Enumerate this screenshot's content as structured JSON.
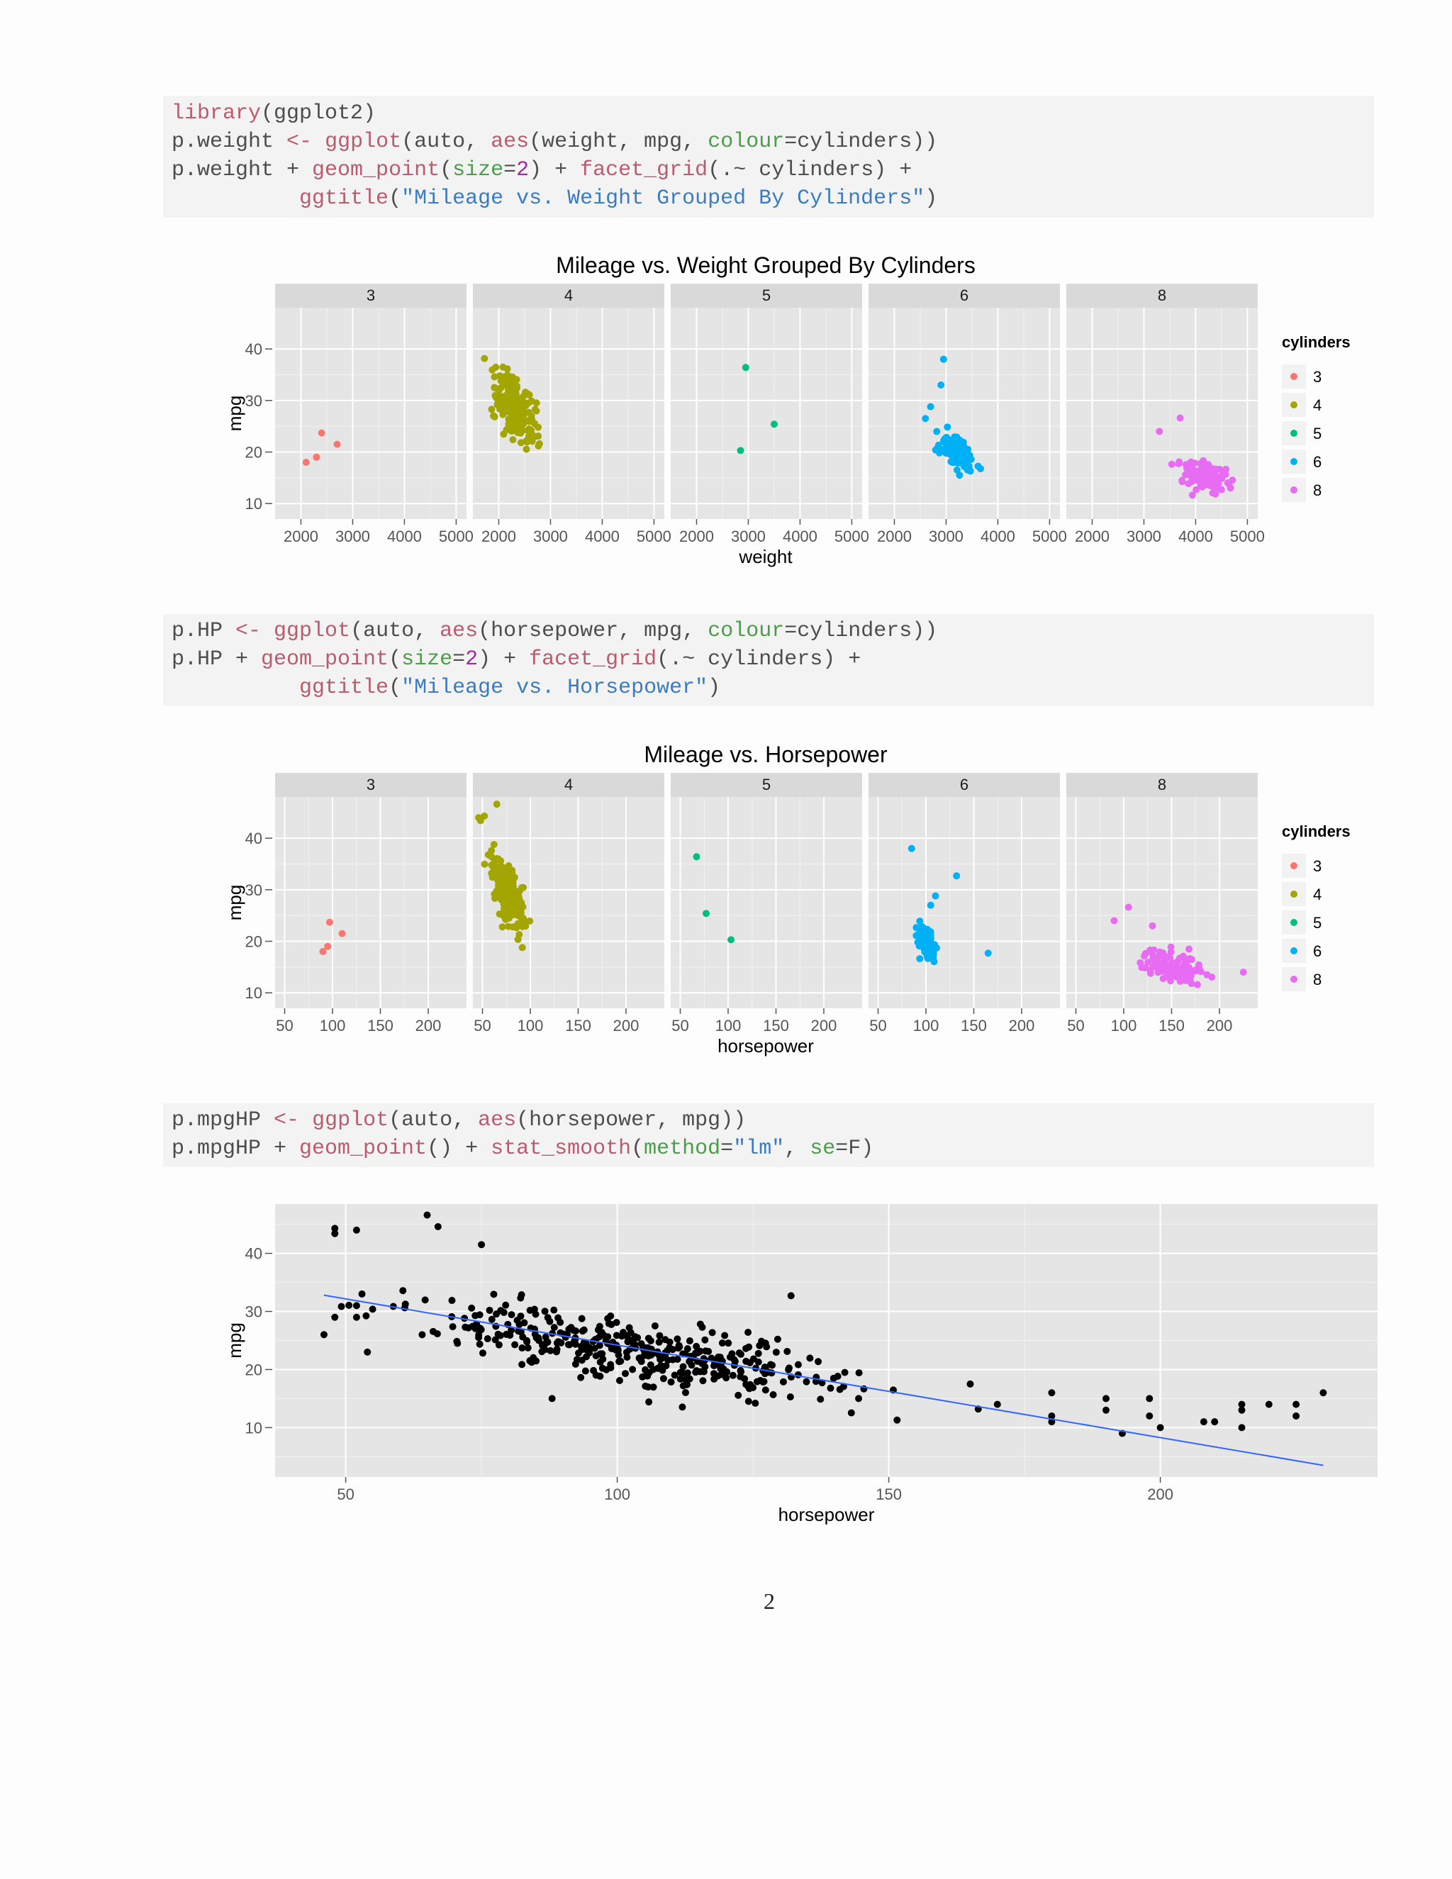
{
  "code_blocks": [
    [
      [
        [
          "kw",
          "library"
        ],
        [
          "t",
          "(ggplot2)"
        ]
      ],
      [
        [
          "t",
          "p.weight "
        ],
        [
          "kw",
          "<-"
        ],
        [
          "t",
          " "
        ],
        [
          "kw",
          "ggplot"
        ],
        [
          "t",
          "(auto, "
        ],
        [
          "kw",
          "aes"
        ],
        [
          "t",
          "(weight, mpg, "
        ],
        [
          "ar",
          "colour"
        ],
        [
          "t",
          "=cylinders))"
        ]
      ],
      [
        [
          "t",
          "p.weight + "
        ],
        [
          "kw",
          "geom_point"
        ],
        [
          "t",
          "("
        ],
        [
          "ar",
          "size"
        ],
        [
          "t",
          "="
        ],
        [
          "nm",
          "2"
        ],
        [
          "t",
          ") + "
        ],
        [
          "kw",
          "facet_grid"
        ],
        [
          "t",
          "(.~ cylinders) +"
        ]
      ],
      [
        [
          "t",
          "          "
        ],
        [
          "kw",
          "ggtitle"
        ],
        [
          "t",
          "("
        ],
        [
          "st",
          "\"Mileage vs. Weight Grouped By Cylinders\""
        ],
        [
          "t",
          ")"
        ]
      ]
    ],
    [
      [
        [
          "t",
          "p.HP "
        ],
        [
          "kw",
          "<-"
        ],
        [
          "t",
          " "
        ],
        [
          "kw",
          "ggplot"
        ],
        [
          "t",
          "(auto, "
        ],
        [
          "kw",
          "aes"
        ],
        [
          "t",
          "(horsepower, mpg, "
        ],
        [
          "ar",
          "colour"
        ],
        [
          "t",
          "=cylinders))"
        ]
      ],
      [
        [
          "t",
          "p.HP + "
        ],
        [
          "kw",
          "geom_point"
        ],
        [
          "t",
          "("
        ],
        [
          "ar",
          "size"
        ],
        [
          "t",
          "="
        ],
        [
          "nm",
          "2"
        ],
        [
          "t",
          ") + "
        ],
        [
          "kw",
          "facet_grid"
        ],
        [
          "t",
          "(.~ cylinders) +"
        ]
      ],
      [
        [
          "t",
          "          "
        ],
        [
          "kw",
          "ggtitle"
        ],
        [
          "t",
          "("
        ],
        [
          "st",
          "\"Mileage vs. Horsepower\""
        ],
        [
          "t",
          ")"
        ]
      ]
    ],
    [
      [
        [
          "t",
          "p.mpgHP "
        ],
        [
          "kw",
          "<-"
        ],
        [
          "t",
          " "
        ],
        [
          "kw",
          "ggplot"
        ],
        [
          "t",
          "(auto, "
        ],
        [
          "kw",
          "aes"
        ],
        [
          "t",
          "(horsepower, mpg))"
        ]
      ],
      [
        [
          "t",
          "p.mpgHP + "
        ],
        [
          "kw",
          "geom_point"
        ],
        [
          "t",
          "() + "
        ],
        [
          "kw",
          "stat_smooth"
        ],
        [
          "t",
          "("
        ],
        [
          "ar",
          "method"
        ],
        [
          "t",
          "="
        ],
        [
          "st",
          "\"lm\""
        ],
        [
          "t",
          ", "
        ],
        [
          "ar",
          "se"
        ],
        [
          "t",
          "=F)"
        ]
      ]
    ]
  ],
  "page_number": "2",
  "chart_data": [
    {
      "type": "scatter",
      "title": "Mileage vs. Weight Grouped By Cylinders",
      "xlabel": "weight",
      "ylabel": "mpg",
      "xlim": [
        1500,
        5200
      ],
      "ylim": [
        7,
        48
      ],
      "xticks": [
        2000,
        3000,
        4000,
        5000
      ],
      "yticks": [
        10,
        20,
        30,
        40
      ],
      "legend_title": "cylinders",
      "facets": [
        {
          "label": "3",
          "color": "#F8766D",
          "points": [
            [
              2100,
              18
            ],
            [
              2300,
              19
            ],
            [
              2400,
              23.7
            ],
            [
              2700,
              21.5
            ]
          ]
        },
        {
          "label": "4",
          "color": "#A3A500",
          "cloud": {
            "n": 199,
            "x": [
              1650,
              3300
            ],
            "y": [
              18,
              46.6
            ],
            "slope": -0.0085,
            "cx": 2300,
            "cy": 29,
            "sx": 330,
            "sy": 4.8
          }
        },
        {
          "label": "5",
          "color": "#00BF7D",
          "points": [
            [
              2850,
              20.3
            ],
            [
              2950,
              36.4
            ],
            [
              3500,
              25.4
            ]
          ]
        },
        {
          "label": "6",
          "color": "#00B0F6",
          "cloud": {
            "n": 83,
            "x": [
              2500,
              3900
            ],
            "y": [
              15,
              38
            ],
            "slope": -0.006,
            "cx": 3200,
            "cy": 19.8,
            "sx": 290,
            "sy": 2.8
          },
          "points": [
            [
              2950,
              38
            ],
            [
              2900,
              33
            ],
            [
              2700,
              28.8
            ],
            [
              2600,
              26.5
            ]
          ]
        },
        {
          "label": "8",
          "color": "#E76BF3",
          "cloud": {
            "n": 103,
            "x": [
              3100,
              5150
            ],
            "y": [
              9,
              26.6
            ],
            "slope": -0.003,
            "cx": 4200,
            "cy": 15,
            "sx": 440,
            "sy": 2.4
          },
          "points": [
            [
              3700,
              26.6
            ],
            [
              3300,
              24
            ]
          ]
        }
      ]
    },
    {
      "type": "scatter",
      "title": "Mileage vs. Horsepower",
      "xlabel": "horsepower",
      "ylabel": "mpg",
      "xlim": [
        40,
        240
      ],
      "ylim": [
        7,
        48
      ],
      "xticks": [
        50,
        100,
        150,
        200
      ],
      "yticks": [
        10,
        20,
        30,
        40
      ],
      "legend_title": "cylinders",
      "facets": [
        {
          "label": "3",
          "color": "#F8766D",
          "points": [
            [
              90,
              18
            ],
            [
              95,
              19
            ],
            [
              97,
              23.7
            ],
            [
              110,
              21.5
            ]
          ]
        },
        {
          "label": "4",
          "color": "#A3A500",
          "cloud": {
            "n": 199,
            "x": [
              46,
              115
            ],
            "y": [
              18,
              46.6
            ],
            "slope": -0.25,
            "cx": 78,
            "cy": 29,
            "sx": 14,
            "sy": 4.8
          },
          "points": [
            [
              46,
              44
            ],
            [
              48,
              43.4
            ],
            [
              52,
              44.3
            ],
            [
              65,
              46.6
            ]
          ]
        },
        {
          "label": "5",
          "color": "#00BF7D",
          "points": [
            [
              67,
              36.4
            ],
            [
              77,
              25.4
            ],
            [
              103,
              20.3
            ]
          ]
        },
        {
          "label": "6",
          "color": "#00B0F6",
          "cloud": {
            "n": 83,
            "x": [
              72,
              125
            ],
            "y": [
              15,
              30
            ],
            "slope": -0.12,
            "cx": 100,
            "cy": 19.8,
            "sx": 9,
            "sy": 2.6
          },
          "points": [
            [
              85,
              38
            ],
            [
              105,
              27
            ],
            [
              132,
              32.7
            ],
            [
              165,
              17.7
            ],
            [
              110,
              28.8
            ]
          ]
        },
        {
          "label": "8",
          "color": "#E76BF3",
          "cloud": {
            "n": 103,
            "x": [
              90,
              230
            ],
            "y": [
              9,
              26.6
            ],
            "slope": -0.05,
            "cx": 150,
            "cy": 15,
            "sx": 28,
            "sy": 2.6
          },
          "points": [
            [
              90,
              24
            ],
            [
              105,
              26.6
            ],
            [
              130,
              23
            ],
            [
              225,
              14
            ]
          ]
        }
      ]
    },
    {
      "type": "scatter",
      "title": "",
      "xlabel": "horsepower",
      "ylabel": "mpg",
      "xlim": [
        37,
        240
      ],
      "ylim": [
        1.5,
        48.5
      ],
      "xticks": [
        50,
        100,
        150,
        200
      ],
      "yticks": [
        10,
        20,
        30,
        40
      ],
      "series": [
        {
          "name": "",
          "color": "#000000",
          "cloud": {
            "n": 392,
            "x": [
              46,
              230
            ],
            "y": [
              9,
              46.6
            ],
            "slope": -0.158,
            "cx": 104,
            "cy": 23.4,
            "sx": 33,
            "sy": 4.6
          },
          "points": [
            [
              46,
              26
            ],
            [
              48,
              29
            ],
            [
              48,
              43.4
            ],
            [
              48,
              44.3
            ],
            [
              52,
              44
            ],
            [
              52,
              31
            ],
            [
              52,
              29
            ],
            [
              53,
              33
            ],
            [
              54,
              23
            ],
            [
              65,
              46.6
            ],
            [
              67,
              44.6
            ],
            [
              75,
              41.5
            ],
            [
              88,
              15
            ],
            [
              132,
              32.7
            ],
            [
              230,
              16
            ],
            [
              225,
              12
            ],
            [
              225,
              14
            ],
            [
              220,
              14
            ],
            [
              215,
              13
            ],
            [
              215,
              10
            ],
            [
              215,
              14
            ],
            [
              210,
              11
            ],
            [
              208,
              11
            ],
            [
              200,
              10
            ],
            [
              198,
              15
            ],
            [
              198,
              12
            ],
            [
              193,
              9
            ],
            [
              190,
              13
            ],
            [
              190,
              15
            ],
            [
              180,
              12
            ],
            [
              180,
              11
            ],
            [
              180,
              16
            ],
            [
              170,
              14
            ],
            [
              165,
              17.5
            ]
          ]
        }
      ],
      "trend_line": {
        "x": [
          46,
          230
        ],
        "y": [
          32.8,
          3.5
        ]
      }
    }
  ]
}
